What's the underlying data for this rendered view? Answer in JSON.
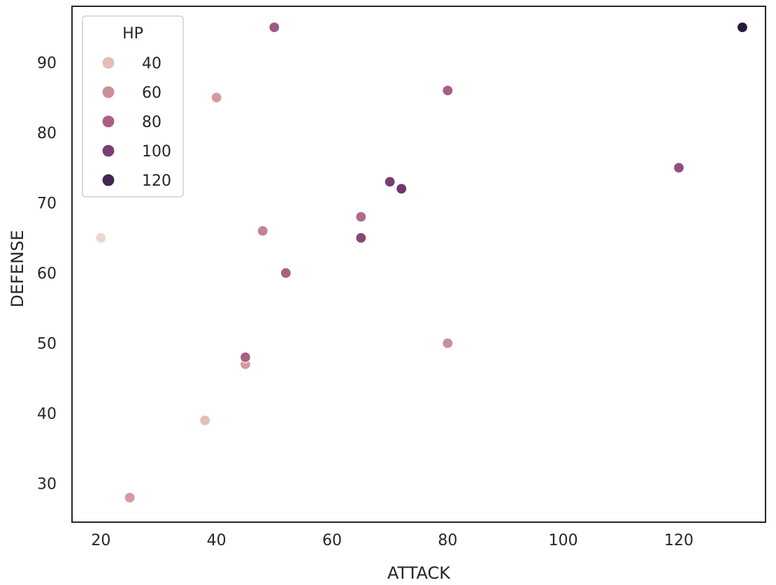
{
  "chart_data": {
    "type": "scatter",
    "title": "",
    "xlabel": "ATTACK",
    "ylabel": "DEFENSE",
    "xlim": [
      15,
      135
    ],
    "ylim": [
      24.5,
      98
    ],
    "xticks": [
      20,
      40,
      60,
      80,
      100,
      120
    ],
    "yticks": [
      30,
      40,
      50,
      60,
      70,
      80,
      90
    ],
    "grid": false,
    "hue_label": "HP",
    "hue_range": [
      30,
      130
    ],
    "legend": {
      "title": "HP",
      "placement": "upper-left",
      "entries": [
        {
          "label": "40",
          "value": 40
        },
        {
          "label": "60",
          "value": 60
        },
        {
          "label": "80",
          "value": 80
        },
        {
          "label": "100",
          "value": 100
        },
        {
          "label": "120",
          "value": 120
        }
      ]
    },
    "points": [
      {
        "x": 20,
        "y": 65,
        "hp": 30
      },
      {
        "x": 25,
        "y": 28,
        "hp": 55
      },
      {
        "x": 38,
        "y": 39,
        "hp": 40
      },
      {
        "x": 40,
        "y": 85,
        "hp": 55
      },
      {
        "x": 45,
        "y": 47,
        "hp": 55
      },
      {
        "x": 45,
        "y": 48,
        "hp": 80
      },
      {
        "x": 48,
        "y": 66,
        "hp": 65
      },
      {
        "x": 50,
        "y": 95,
        "hp": 85
      },
      {
        "x": 52,
        "y": 60,
        "hp": 80
      },
      {
        "x": 65,
        "y": 68,
        "hp": 75
      },
      {
        "x": 65,
        "y": 65,
        "hp": 95
      },
      {
        "x": 70,
        "y": 73,
        "hp": 100
      },
      {
        "x": 72,
        "y": 72,
        "hp": 105
      },
      {
        "x": 80,
        "y": 86,
        "hp": 80
      },
      {
        "x": 80,
        "y": 50,
        "hp": 60
      },
      {
        "x": 120,
        "y": 75,
        "hp": 90
      },
      {
        "x": 131,
        "y": 95,
        "hp": 130
      }
    ]
  }
}
